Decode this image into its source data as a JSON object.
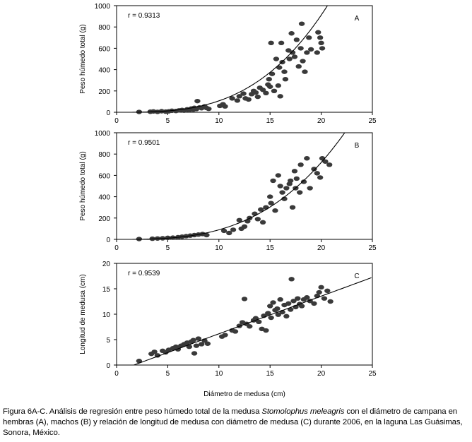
{
  "chart_data": [
    {
      "type": "scatter",
      "panel": "A",
      "title": "",
      "xlabel": "",
      "ylabel": "Peso húmedo total (g)",
      "xlim": [
        0,
        25
      ],
      "ylim": [
        0,
        1000
      ],
      "xticks": [
        0,
        5,
        10,
        15,
        20,
        25
      ],
      "yticks": [
        0,
        200,
        400,
        600,
        800,
        1000
      ],
      "annotation": "r = 0.9313",
      "fit": {
        "kind": "power",
        "a": 0.087,
        "b": 3.09
      },
      "points": [
        [
          2.2,
          3
        ],
        [
          3.3,
          5
        ],
        [
          3.6,
          8
        ],
        [
          4.0,
          4
        ],
        [
          4.4,
          10
        ],
        [
          4.8,
          6
        ],
        [
          5.1,
          9
        ],
        [
          5.4,
          14
        ],
        [
          5.8,
          12
        ],
        [
          6.1,
          18
        ],
        [
          6.4,
          22
        ],
        [
          6.6,
          15
        ],
        [
          6.9,
          28
        ],
        [
          7.1,
          20
        ],
        [
          7.3,
          35
        ],
        [
          7.5,
          25
        ],
        [
          7.6,
          42
        ],
        [
          7.8,
          30
        ],
        [
          7.9,
          105
        ],
        [
          8.1,
          45
        ],
        [
          8.3,
          38
        ],
        [
          8.6,
          55
        ],
        [
          8.8,
          40
        ],
        [
          9.0,
          32
        ],
        [
          10.1,
          60
        ],
        [
          10.4,
          75
        ],
        [
          10.6,
          55
        ],
        [
          11.3,
          130
        ],
        [
          11.8,
          110
        ],
        [
          12.0,
          150
        ],
        [
          12.4,
          175
        ],
        [
          12.6,
          130
        ],
        [
          12.9,
          120
        ],
        [
          13.2,
          170
        ],
        [
          13.4,
          200
        ],
        [
          13.6,
          185
        ],
        [
          13.8,
          145
        ],
        [
          14.0,
          230
        ],
        [
          14.3,
          210
        ],
        [
          14.6,
          180
        ],
        [
          14.8,
          260
        ],
        [
          14.9,
          310
        ],
        [
          15.0,
          240
        ],
        [
          15.1,
          650
        ],
        [
          15.2,
          360
        ],
        [
          15.4,
          200
        ],
        [
          15.6,
          500
        ],
        [
          15.8,
          250
        ],
        [
          15.9,
          420
        ],
        [
          16.0,
          150
        ],
        [
          16.1,
          650
        ],
        [
          16.2,
          470
        ],
        [
          16.4,
          380
        ],
        [
          16.5,
          310
        ],
        [
          16.8,
          580
        ],
        [
          16.9,
          500
        ],
        [
          17.1,
          740
        ],
        [
          17.2,
          560
        ],
        [
          17.4,
          520
        ],
        [
          17.6,
          680
        ],
        [
          17.8,
          430
        ],
        [
          18.0,
          600
        ],
        [
          18.1,
          830
        ],
        [
          18.2,
          480
        ],
        [
          18.4,
          380
        ],
        [
          18.6,
          560
        ],
        [
          18.8,
          700
        ],
        [
          19.0,
          590
        ],
        [
          19.6,
          560
        ],
        [
          19.7,
          750
        ],
        [
          19.9,
          700
        ],
        [
          20.0,
          650
        ],
        [
          20.1,
          600
        ]
      ]
    },
    {
      "type": "scatter",
      "panel": "B",
      "title": "",
      "xlabel": "",
      "ylabel": "Peso húmedo total (g)",
      "xlim": [
        0,
        25
      ],
      "ylim": [
        0,
        1000
      ],
      "xticks": [
        0,
        5,
        10,
        15,
        20,
        25
      ],
      "yticks": [
        0,
        200,
        400,
        600,
        800,
        1000
      ],
      "annotation": "r = 0.9501",
      "fit": {
        "kind": "power",
        "a": 0.0875,
        "b": 3.01
      },
      "points": [
        [
          2.2,
          3
        ],
        [
          3.5,
          6
        ],
        [
          4.0,
          8
        ],
        [
          4.5,
          10
        ],
        [
          5.0,
          14
        ],
        [
          5.5,
          16
        ],
        [
          6.0,
          20
        ],
        [
          6.4,
          25
        ],
        [
          6.8,
          30
        ],
        [
          7.2,
          35
        ],
        [
          7.6,
          40
        ],
        [
          8.0,
          45
        ],
        [
          8.4,
          50
        ],
        [
          8.8,
          40
        ],
        [
          10.5,
          80
        ],
        [
          11.0,
          60
        ],
        [
          11.4,
          90
        ],
        [
          12.0,
          180
        ],
        [
          12.2,
          100
        ],
        [
          12.5,
          120
        ],
        [
          12.8,
          170
        ],
        [
          13.0,
          200
        ],
        [
          13.5,
          240
        ],
        [
          13.8,
          190
        ],
        [
          14.1,
          280
        ],
        [
          14.3,
          160
        ],
        [
          14.6,
          300
        ],
        [
          15.0,
          400
        ],
        [
          15.1,
          340
        ],
        [
          15.3,
          550
        ],
        [
          15.5,
          270
        ],
        [
          15.8,
          600
        ],
        [
          16.0,
          500
        ],
        [
          16.2,
          440
        ],
        [
          16.4,
          380
        ],
        [
          16.6,
          480
        ],
        [
          16.9,
          520
        ],
        [
          17.0,
          550
        ],
        [
          17.2,
          300
        ],
        [
          17.4,
          640
        ],
        [
          17.5,
          480
        ],
        [
          17.6,
          570
        ],
        [
          17.9,
          440
        ],
        [
          18.0,
          700
        ],
        [
          18.3,
          540
        ],
        [
          18.6,
          760
        ],
        [
          18.9,
          480
        ],
        [
          19.3,
          660
        ],
        [
          19.6,
          620
        ],
        [
          19.9,
          580
        ],
        [
          20.1,
          760
        ],
        [
          20.4,
          730
        ],
        [
          20.8,
          700
        ]
      ]
    },
    {
      "type": "scatter",
      "panel": "C",
      "title": "",
      "xlabel": "Diámetro de medusa (cm)",
      "ylabel": "Longitud de medusa (cm)",
      "xlim": [
        0,
        25
      ],
      "ylim": [
        0,
        20
      ],
      "xticks": [
        0,
        5,
        10,
        15,
        20,
        25
      ],
      "yticks": [
        0,
        5,
        10,
        15,
        20
      ],
      "annotation": "r = 0.9539",
      "fit": {
        "kind": "linear",
        "slope": 0.74,
        "intercept": -1.25
      },
      "points": [
        [
          2.2,
          0.8
        ],
        [
          3.4,
          2.2
        ],
        [
          3.7,
          2.6
        ],
        [
          4.0,
          1.9
        ],
        [
          4.5,
          2.8
        ],
        [
          4.8,
          2.5
        ],
        [
          5.1,
          3.0
        ],
        [
          5.5,
          3.3
        ],
        [
          5.8,
          3.6
        ],
        [
          6.0,
          3.1
        ],
        [
          6.3,
          3.8
        ],
        [
          6.6,
          4.1
        ],
        [
          6.9,
          4.4
        ],
        [
          7.1,
          3.6
        ],
        [
          7.3,
          4.6
        ],
        [
          7.5,
          4.9
        ],
        [
          7.6,
          2.3
        ],
        [
          7.8,
          3.8
        ],
        [
          8.0,
          5.2
        ],
        [
          8.3,
          4.1
        ],
        [
          8.6,
          4.8
        ],
        [
          8.9,
          4.2
        ],
        [
          10.3,
          5.6
        ],
        [
          10.6,
          5.9
        ],
        [
          11.3,
          6.8
        ],
        [
          11.6,
          6.6
        ],
        [
          12.0,
          7.7
        ],
        [
          12.3,
          8.4
        ],
        [
          12.5,
          13.0
        ],
        [
          12.7,
          8.1
        ],
        [
          13.0,
          7.6
        ],
        [
          13.4,
          8.8
        ],
        [
          13.6,
          9.2
        ],
        [
          13.9,
          8.5
        ],
        [
          14.2,
          7.1
        ],
        [
          14.4,
          9.7
        ],
        [
          14.6,
          6.8
        ],
        [
          14.8,
          10.2
        ],
        [
          15.0,
          11.6
        ],
        [
          15.1,
          9.3
        ],
        [
          15.3,
          12.3
        ],
        [
          15.5,
          10.8
        ],
        [
          15.7,
          11.1
        ],
        [
          15.8,
          9.9
        ],
        [
          16.0,
          12.9
        ],
        [
          16.2,
          10.4
        ],
        [
          16.4,
          11.8
        ],
        [
          16.6,
          9.6
        ],
        [
          16.8,
          12.1
        ],
        [
          17.0,
          10.9
        ],
        [
          17.1,
          16.9
        ],
        [
          17.3,
          12.6
        ],
        [
          17.5,
          11.4
        ],
        [
          17.7,
          13.1
        ],
        [
          17.9,
          12.0
        ],
        [
          18.1,
          11.6
        ],
        [
          18.3,
          12.9
        ],
        [
          18.6,
          13.3
        ],
        [
          18.9,
          12.6
        ],
        [
          19.3,
          12.1
        ],
        [
          19.6,
          13.6
        ],
        [
          19.8,
          14.3
        ],
        [
          20.0,
          15.3
        ],
        [
          20.3,
          13.1
        ],
        [
          20.6,
          14.6
        ],
        [
          20.9,
          12.5
        ]
      ]
    }
  ],
  "caption": {
    "part1": "Figura 6A-C. Análisis de regresión entre peso húmedo total de la medusa ",
    "species": "Stomolophus meleagris",
    "part2": " con el diámetro de campana en hembras (A), machos (B) y relación de longitud de medusa con diámetro de medusa (C) durante 2006, en la laguna Las Guásimas, Sonora, México."
  }
}
